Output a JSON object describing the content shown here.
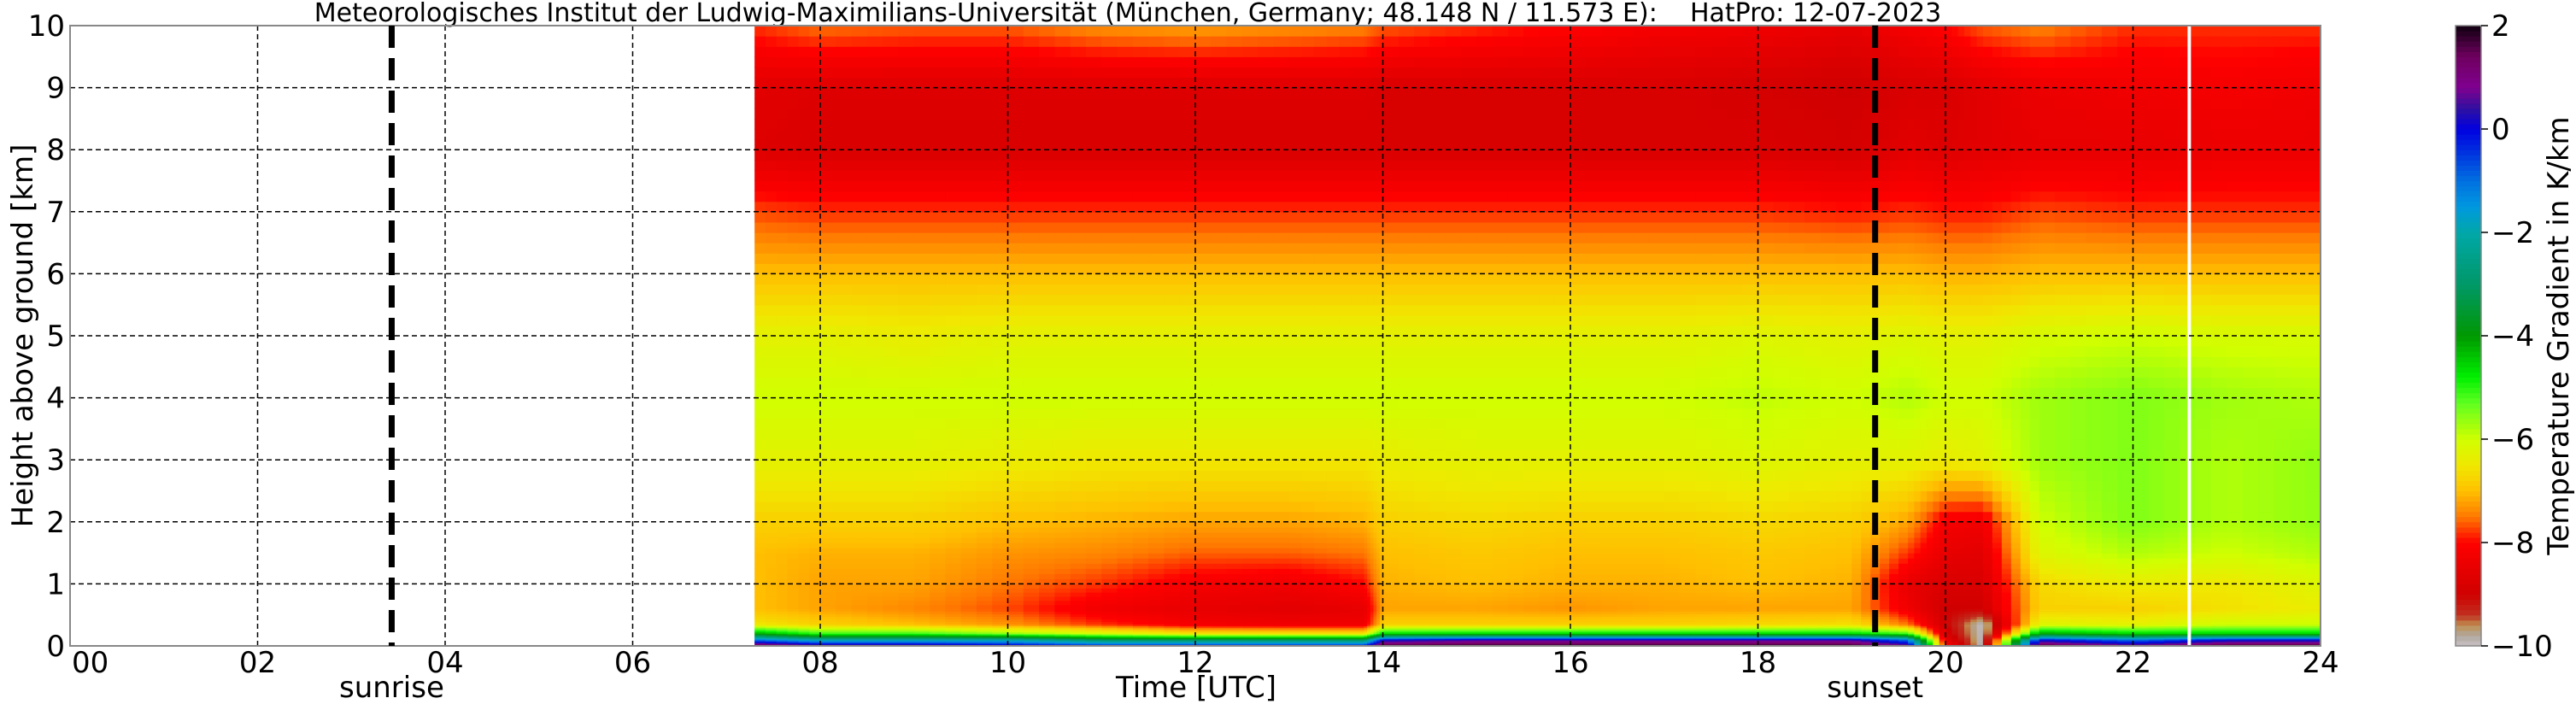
{
  "chart_data": {
    "type": "heatmap",
    "title": "Meteorologisches Institut der Ludwig-Maximilians-Universität (München, Germany; 48.148 N / 11.573 E):    HatPro: 12-07-2023",
    "xlabel": "Time [UTC]",
    "ylabel": "Height above ground [km]",
    "xlim": [
      0,
      24
    ],
    "ylim": [
      0,
      10
    ],
    "xticks": [
      "00",
      "02",
      "04",
      "06",
      "08",
      "10",
      "12",
      "14",
      "16",
      "18",
      "20",
      "22",
      "24"
    ],
    "yticks": [
      "0",
      "1",
      "2",
      "3",
      "4",
      "5",
      "6",
      "7",
      "8",
      "9",
      "10"
    ],
    "grid": true,
    "colorbar": {
      "label": "Temperature Gradient in K/km",
      "range": [
        -10,
        2
      ],
      "ticks": [
        "2",
        "0",
        "−2",
        "−4",
        "−6",
        "−8",
        "−10"
      ],
      "stops": [
        [
          -10,
          "#c8c0c4"
        ],
        [
          -9.8,
          "#b0a8a0"
        ],
        [
          -9.6,
          "#c09050"
        ],
        [
          -9.4,
          "#c03020"
        ],
        [
          -9,
          "#d00000"
        ],
        [
          -8,
          "#ff0000"
        ],
        [
          -7.5,
          "#ff7800"
        ],
        [
          -7,
          "#ffc000"
        ],
        [
          -6.5,
          "#f0e800"
        ],
        [
          -6,
          "#d0ff00"
        ],
        [
          -5.3,
          "#60ff20"
        ],
        [
          -4.8,
          "#00f000"
        ],
        [
          -4,
          "#009800"
        ],
        [
          -3,
          "#009868"
        ],
        [
          -2,
          "#00a8a8"
        ],
        [
          -1.5,
          "#0098e0"
        ],
        [
          -1,
          "#0070e0"
        ],
        [
          0,
          "#0000e0"
        ],
        [
          0.4,
          "#3010a0"
        ],
        [
          0.8,
          "#800090"
        ],
        [
          1.4,
          "#700060"
        ],
        [
          2,
          "#100010"
        ]
      ]
    },
    "annotations": [
      {
        "label": "sunrise",
        "x": 3.43
      },
      {
        "label": "sunset",
        "x": 19.25
      }
    ],
    "data_gap_x": 22.6,
    "x": [
      7.3,
      8,
      9,
      10,
      11,
      12,
      13,
      13.8,
      14,
      15,
      16,
      17,
      18,
      19,
      19.6,
      20,
      20.4,
      21,
      22,
      23,
      24
    ],
    "y": [
      0,
      0.1,
      0.2,
      0.35,
      0.6,
      1,
      1.5,
      2,
      3,
      4,
      5,
      6,
      7,
      8,
      9,
      10
    ],
    "z_by_time": [
      [
        2,
        -1,
        -4,
        -6.5,
        -7,
        -7,
        -7,
        -6.8,
        -6.3,
        -6,
        -6.3,
        -7,
        -7.7,
        -8.7,
        -8.6,
        -7.8
      ],
      [
        1,
        -2,
        -5,
        -6.8,
        -7.2,
        -7.2,
        -7.1,
        -6.8,
        -6.3,
        -6,
        -6.3,
        -7,
        -7.8,
        -8.8,
        -8.7,
        -7.5
      ],
      [
        1,
        -2,
        -5,
        -7,
        -7.4,
        -7.2,
        -7.1,
        -6.8,
        -6.3,
        -6,
        -6.4,
        -7,
        -7.8,
        -8.8,
        -8.7,
        -7.6
      ],
      [
        0.5,
        -2,
        -5.5,
        -7.3,
        -7.7,
        -7.5,
        -7.3,
        -7,
        -6.4,
        -6,
        -6.3,
        -7,
        -7.8,
        -8.8,
        -8.7,
        -7.6
      ],
      [
        0,
        -3,
        -6,
        -7.8,
        -8.3,
        -7.8,
        -7.4,
        -7.1,
        -6.5,
        -6,
        -6.3,
        -7,
        -7.8,
        -8.8,
        -8.7,
        -7.3
      ],
      [
        0,
        -3,
        -6.5,
        -8.2,
        -8.5,
        -8.2,
        -7.6,
        -7.2,
        -6.5,
        -6,
        -6.3,
        -7,
        -7.8,
        -8.8,
        -8.7,
        -7.2
      ],
      [
        0,
        -3,
        -6.5,
        -8.3,
        -8.6,
        -8.3,
        -7.6,
        -7.2,
        -6.5,
        -6,
        -6.3,
        -7,
        -7.8,
        -8.8,
        -8.7,
        -7.3
      ],
      [
        0,
        -3,
        -6.5,
        -8.3,
        -8.5,
        -8,
        -7.5,
        -7.1,
        -6.5,
        -6,
        -6.3,
        -7,
        -7.8,
        -8.8,
        -8.7,
        -7.4
      ],
      [
        2,
        0,
        -4.5,
        -6.8,
        -7.2,
        -7.1,
        -7,
        -6.8,
        -6.4,
        -6,
        -6.3,
        -7,
        -7.8,
        -8.8,
        -8.8,
        -7.6
      ],
      [
        2,
        0.5,
        -4.5,
        -6.8,
        -7.2,
        -7,
        -6.9,
        -6.7,
        -6.3,
        -6,
        -6.3,
        -7,
        -7.8,
        -8.8,
        -8.8,
        -7.8
      ],
      [
        2,
        0.5,
        -4.5,
        -6.8,
        -7.3,
        -7.1,
        -7,
        -6.8,
        -6.3,
        -6,
        -6.3,
        -7,
        -7.8,
        -8.8,
        -8.8,
        -8
      ],
      [
        2,
        0.5,
        -4.5,
        -6.8,
        -7.2,
        -7.1,
        -7,
        -6.8,
        -6.3,
        -6,
        -6.3,
        -7,
        -7.8,
        -8.8,
        -8.8,
        -8.2
      ],
      [
        2,
        0.5,
        -4.5,
        -6.7,
        -7.2,
        -7,
        -6.9,
        -6.7,
        -6.2,
        -5.9,
        -6.2,
        -7,
        -7.8,
        -8.8,
        -8.9,
        -8.3
      ],
      [
        2,
        0.5,
        -4.5,
        -6.6,
        -7.2,
        -7.1,
        -7,
        -6.8,
        -6.3,
        -6,
        -6.3,
        -7,
        -7.9,
        -8.9,
        -9,
        -8.5
      ],
      [
        1,
        -1,
        -5,
        -7.5,
        -8.3,
        -8.5,
        -7.8,
        -7.2,
        -6.3,
        -5.8,
        -6.2,
        -7,
        -7.8,
        -8.6,
        -8.8,
        -8.2
      ],
      [
        -8,
        -8.5,
        -8.8,
        -9,
        -9,
        -8.8,
        -8.5,
        -8.2,
        -6.4,
        -6,
        -6.3,
        -7.1,
        -7.9,
        -8.7,
        -8.8,
        -8
      ],
      [
        -10,
        -10,
        -10,
        -10,
        -9,
        -8.8,
        -8.6,
        -8.3,
        -6.3,
        -6,
        -6.3,
        -7.1,
        -7.9,
        -8.6,
        -8.6,
        -7.6
      ],
      [
        2,
        0,
        -4,
        -6.2,
        -6.8,
        -6.7,
        -6.2,
        -6,
        -5.7,
        -5.7,
        -6.1,
        -7,
        -7.7,
        -8.5,
        -8.4,
        -7.4
      ],
      [
        1,
        -1,
        -4.5,
        -6.3,
        -6.8,
        -6.4,
        -5.8,
        -5.5,
        -5.5,
        -5.5,
        -6,
        -7,
        -7.8,
        -8.5,
        -8.3,
        -7.8
      ],
      [
        2,
        0,
        -4.5,
        -6,
        -6.6,
        -6.5,
        -6,
        -5.8,
        -5.8,
        -5.7,
        -6.1,
        -7,
        -7.8,
        -8.4,
        -8.2,
        -7.8
      ],
      [
        2,
        0,
        -4.5,
        -6,
        -6.4,
        -6.2,
        -5.8,
        -5.6,
        -5.6,
        -5.8,
        -6.1,
        -7,
        -7.8,
        -8.4,
        -8.3,
        -7.8
      ]
    ]
  }
}
